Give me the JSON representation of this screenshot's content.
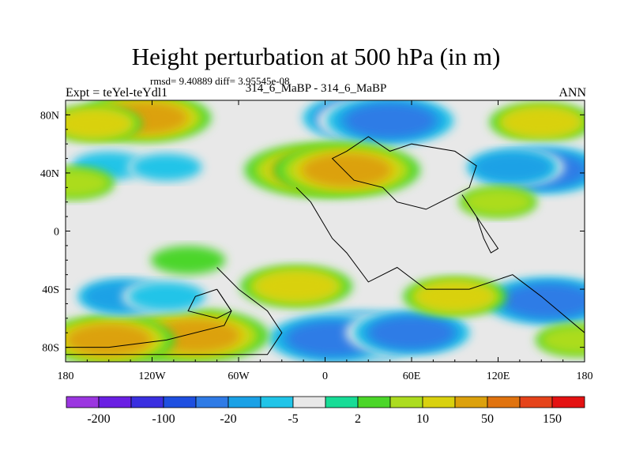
{
  "chart_data": {
    "type": "heatmap",
    "title": "Height perturbation at 500 hPa (in m)",
    "stats_text": "rmsd= 9.40889 diff= 3.95545e-08",
    "left_string": "Expt = teYel-teYdl1",
    "center_string": "314_6_MaBP - 314_6_MaBP",
    "right_string": "ANN",
    "xlim": [
      -180,
      180
    ],
    "ylim": [
      -90,
      90
    ],
    "xticks": [
      {
        "value": -180,
        "label": "180"
      },
      {
        "value": -120,
        "label": "120W"
      },
      {
        "value": -60,
        "label": "60W"
      },
      {
        "value": 0,
        "label": "0"
      },
      {
        "value": 60,
        "label": "60E"
      },
      {
        "value": 120,
        "label": "120E"
      },
      {
        "value": 180,
        "label": "180"
      }
    ],
    "yticks": [
      {
        "value": 80,
        "label": "80N"
      },
      {
        "value": 40,
        "label": "40N"
      },
      {
        "value": 0,
        "label": "0"
      },
      {
        "value": -40,
        "label": "40S"
      },
      {
        "value": -80,
        "label": "80S"
      }
    ],
    "colorbar": {
      "colors": [
        "#9b36e0",
        "#6a1fe3",
        "#3a2fe0",
        "#1e4fe0",
        "#2f7be6",
        "#1aa1e6",
        "#20c4e8",
        "#e8e8e8",
        "#18dc96",
        "#4bd629",
        "#acdc1f",
        "#d9d10f",
        "#dca10c",
        "#e0730f",
        "#e5431a",
        "#e41212"
      ],
      "labels": [
        "-200",
        "-100",
        "-20",
        "-5",
        "2",
        "10",
        "50",
        "150"
      ],
      "label_positions": [
        1,
        3,
        5,
        7,
        9,
        11,
        13,
        15
      ]
    },
    "background_color": "#e8e8e8",
    "blobs": [
      {
        "lon": 30,
        "lat": 78,
        "value": -45
      },
      {
        "lon": 45,
        "lat": 76,
        "value": -30
      },
      {
        "lon": -125,
        "lat": 78,
        "value": 25
      },
      {
        "lon": -160,
        "lat": 74,
        "value": 12
      },
      {
        "lon": 150,
        "lat": 75,
        "value": 15
      },
      {
        "lon": -5,
        "lat": 42,
        "value": 40
      },
      {
        "lon": 15,
        "lat": 42,
        "value": 35
      },
      {
        "lon": 150,
        "lat": 42,
        "value": -40
      },
      {
        "lon": 130,
        "lat": 44,
        "value": -15
      },
      {
        "lon": -150,
        "lat": 45,
        "value": -8
      },
      {
        "lon": -110,
        "lat": 44,
        "value": -6
      },
      {
        "lon": -175,
        "lat": 33,
        "value": 8
      },
      {
        "lon": 120,
        "lat": 20,
        "value": 6
      },
      {
        "lon": 25,
        "lat": -72,
        "value": -45
      },
      {
        "lon": 5,
        "lat": -74,
        "value": -35
      },
      {
        "lon": 60,
        "lat": -70,
        "value": -25
      },
      {
        "lon": -120,
        "lat": -70,
        "value": 40
      },
      {
        "lon": -90,
        "lat": -72,
        "value": 30
      },
      {
        "lon": -150,
        "lat": -75,
        "value": 25
      },
      {
        "lon": -140,
        "lat": -45,
        "value": -15
      },
      {
        "lon": -110,
        "lat": -45,
        "value": -10
      },
      {
        "lon": 155,
        "lat": -48,
        "value": -30
      },
      {
        "lon": 90,
        "lat": -45,
        "value": 15
      },
      {
        "lon": -20,
        "lat": -38,
        "value": 18
      },
      {
        "lon": -95,
        "lat": -20,
        "value": 5
      },
      {
        "lon": 175,
        "lat": -75,
        "value": 8
      }
    ],
    "coastlines": [
      [
        [
          -75,
          -25
        ],
        [
          -60,
          -40
        ],
        [
          -40,
          -55
        ],
        [
          -30,
          -70
        ],
        [
          -40,
          -85
        ],
        [
          -110,
          -85
        ],
        [
          -160,
          -85
        ],
        [
          -180,
          -85
        ]
      ],
      [
        [
          -75,
          -40
        ],
        [
          -65,
          -55
        ],
        [
          -70,
          -65
        ],
        [
          -110,
          -75
        ],
        [
          -150,
          -80
        ],
        [
          -180,
          -80
        ]
      ],
      [
        [
          -20,
          30
        ],
        [
          -10,
          20
        ],
        [
          5,
          -5
        ],
        [
          15,
          -15
        ],
        [
          30,
          -35
        ],
        [
          50,
          -25
        ],
        [
          70,
          -40
        ],
        [
          100,
          -40
        ],
        [
          130,
          -30
        ],
        [
          150,
          -45
        ],
        [
          180,
          -70
        ]
      ],
      [
        [
          15,
          55
        ],
        [
          30,
          65
        ],
        [
          45,
          55
        ],
        [
          60,
          60
        ],
        [
          90,
          55
        ],
        [
          105,
          45
        ],
        [
          100,
          30
        ],
        [
          70,
          15
        ],
        [
          50,
          20
        ],
        [
          40,
          30
        ],
        [
          20,
          35
        ],
        [
          10,
          45
        ],
        [
          5,
          50
        ],
        [
          15,
          55
        ]
      ],
      [
        [
          95,
          25
        ],
        [
          105,
          10
        ],
        [
          110,
          -5
        ],
        [
          115,
          -15
        ],
        [
          120,
          -12
        ],
        [
          105,
          10
        ],
        [
          95,
          25
        ]
      ],
      [
        [
          -75,
          -40
        ],
        [
          -90,
          -45
        ],
        [
          -95,
          -55
        ],
        [
          -75,
          -60
        ],
        [
          -65,
          -55
        ],
        [
          -75,
          -40
        ]
      ]
    ]
  }
}
